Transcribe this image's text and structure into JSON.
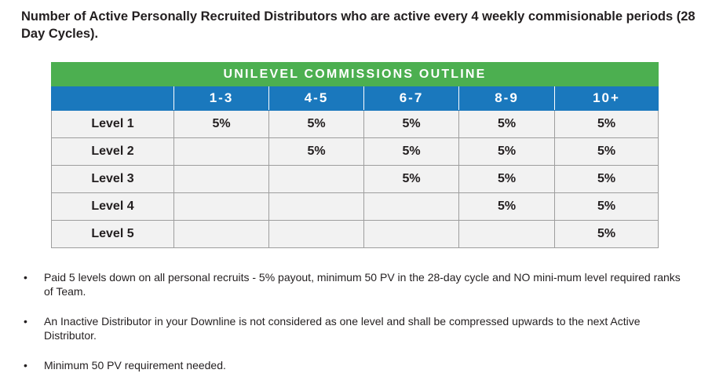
{
  "heading": "Number of Active Personally Recruited Distributors who are active every 4 weekly commisionable periods (28 Day Cycles).",
  "table": {
    "title": "UNILEVEL COMMISSIONS OUTLINE",
    "columns": [
      "",
      "1-3",
      "4-5",
      "6-7",
      "8-9",
      "10+"
    ],
    "rows": [
      {
        "label": "Level 1",
        "cells": [
          "5%",
          "5%",
          "5%",
          "5%",
          "5%"
        ]
      },
      {
        "label": "Level 2",
        "cells": [
          "",
          "5%",
          "5%",
          "5%",
          "5%"
        ]
      },
      {
        "label": "Level 3",
        "cells": [
          "",
          "",
          "5%",
          "5%",
          "5%"
        ]
      },
      {
        "label": "Level 4",
        "cells": [
          "",
          "",
          "",
          "5%",
          "5%"
        ]
      },
      {
        "label": "Level 5",
        "cells": [
          "",
          "",
          "",
          "",
          "5%"
        ]
      }
    ]
  },
  "bullet_symbol": "•",
  "bullets": [
    "Paid 5 levels down on all personal recruits - 5% payout, minimum 50 PV in the 28-day cycle and NO mini-mum level required ranks of Team.",
    "An Inactive Distributor in your Downline is not considered as one level and shall be compressed upwards to the next Active Distributor.",
    "Minimum 50 PV requirement needed."
  ],
  "colors": {
    "title_bar": "#4caf50",
    "header_bar": "#1a78bd",
    "cell_background": "#f2f2f2",
    "grid_line": "#9e9e9e",
    "text": "#231f20"
  }
}
